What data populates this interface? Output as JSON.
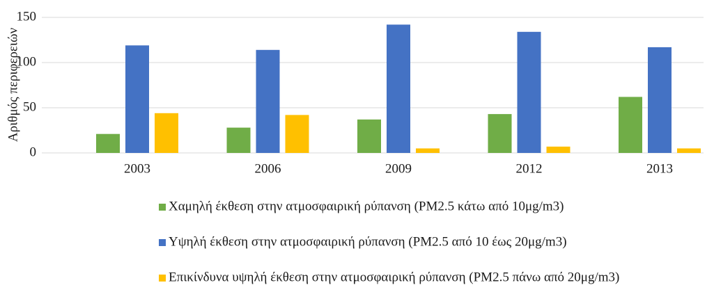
{
  "chart_data": {
    "type": "bar",
    "y_label": "Αριθμός περιφερειών",
    "categories": [
      "2003",
      "2006",
      "2009",
      "2012",
      "2013"
    ],
    "series": [
      {
        "name": "Χαμηλή έκθεση στην ατμοσφαιρική ρύπανση (PM2.5 κάτω από 10μg/m3)",
        "color": "#70ad47",
        "values": [
          21,
          28,
          37,
          43,
          62
        ]
      },
      {
        "name": "Υψηλή έκθεση στην ατμοσφαιρική ρύπανση (PM2.5 από 10 έως 20μg/m3)",
        "color": "#4472c4",
        "values": [
          119,
          114,
          142,
          134,
          117
        ]
      },
      {
        "name": "Επικίνδυνα υψηλή έκθεση στην ατμοσφαιρική ρύπανση (PM2.5 πάνω από 20μg/m3)",
        "color": "#ffc000",
        "values": [
          44,
          42,
          5,
          7,
          5
        ]
      }
    ],
    "ylim": [
      0,
      150
    ],
    "yticks": [
      0,
      50,
      100,
      150
    ],
    "grid": true,
    "legend": "bottom"
  }
}
